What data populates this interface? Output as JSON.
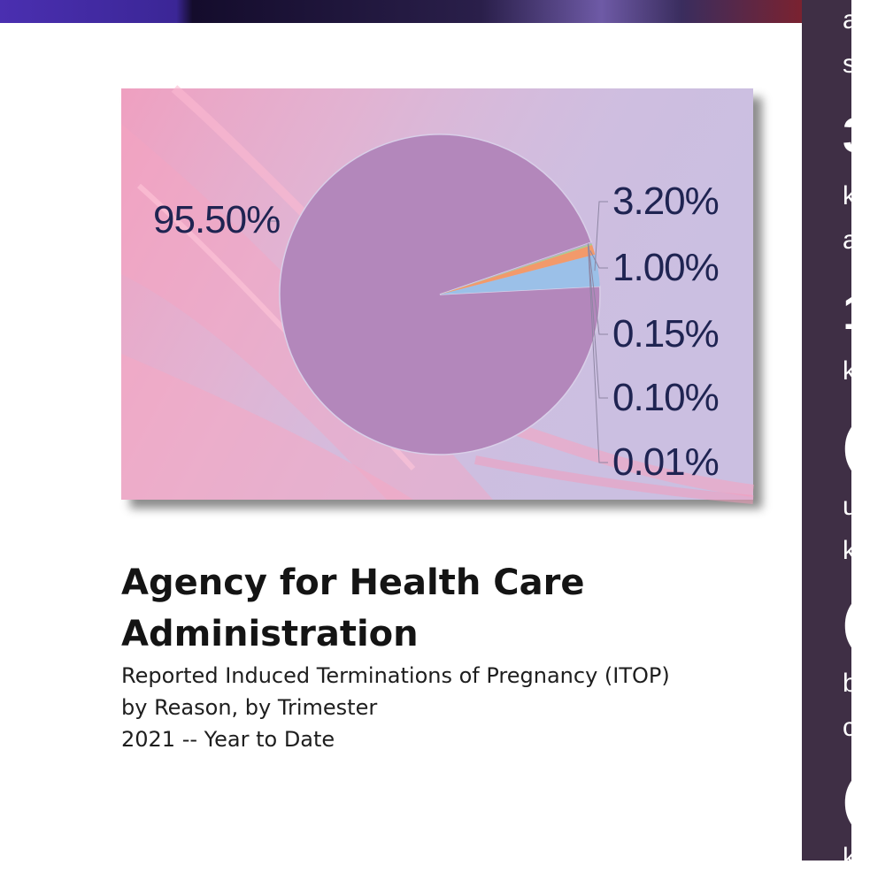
{
  "header": {
    "title": "Agency for Health Care Administration",
    "subtitle_lines": [
      "Reported Induced Terminations of Pregnancy (ITOP)",
      "by Reason, by Trimester",
      "2021 -- Year to Date"
    ]
  },
  "right_panel": {
    "fragments": [
      "a",
      "s",
      "3",
      "k",
      "a",
      "1",
      "k",
      "(",
      "u",
      "k",
      "(",
      "b",
      "c",
      "(",
      "k"
    ]
  },
  "colors": {
    "card_background": "#cbbfe1",
    "pink_wash": "#f59aba",
    "major_slice": "#b387bb",
    "slice_blue": "#9bc0e8",
    "slice_orange": "#f29a6b",
    "slice_green": "#a7cf8f",
    "label_text": "#1f2452",
    "right_panel": "#3f2f45"
  },
  "chart_data": {
    "type": "pie",
    "title": "",
    "slices": [
      {
        "value": 95.5,
        "label": "95.50%",
        "color": "#b387bb"
      },
      {
        "value": 3.2,
        "label": "3.20%",
        "color": "#9bc0e8"
      },
      {
        "value": 1.0,
        "label": "1.00%",
        "color": "#f29a6b"
      },
      {
        "value": 0.15,
        "label": "0.15%",
        "color": "#a7cf8f"
      },
      {
        "value": 0.1,
        "label": "0.10%",
        "color": "#b7a6d6"
      },
      {
        "value": 0.01,
        "label": "0.01%",
        "color": "#d8a0b4"
      }
    ]
  }
}
